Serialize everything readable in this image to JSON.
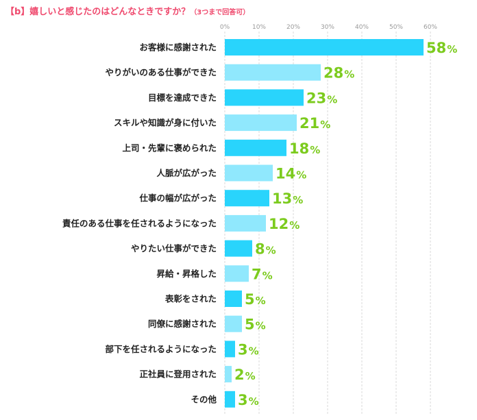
{
  "chart_data": {
    "type": "bar",
    "orientation": "horizontal",
    "title": "【b】嬉しいと感じたのはどんなときですか？",
    "subtitle": "（3つまで回答可）",
    "xlim": [
      0,
      60
    ],
    "ticks": [
      "0%",
      "10%",
      "20%",
      "30%",
      "40%",
      "50%",
      "60%"
    ],
    "tick_values": [
      0,
      10,
      20,
      30,
      40,
      50,
      60
    ],
    "grid": true,
    "value_suffix": "%",
    "categories": [
      "お客様に感謝された",
      "やりがいのある仕事ができた",
      "目標を達成できた",
      "スキルや知識が身に付いた",
      "上司・先輩に褒められた",
      "人脈が広がった",
      "仕事の幅が広がった",
      "責任のある仕事を任されるようになった",
      "やりたい仕事ができた",
      "昇給・昇格した",
      "表彰をされた",
      "同僚に感謝された",
      "部下を任されるようになった",
      "正社員に登用された",
      "その他"
    ],
    "values": [
      58,
      28,
      23,
      21,
      18,
      14,
      13,
      12,
      8,
      7,
      5,
      5,
      3,
      2,
      3
    ],
    "colors": {
      "bar_dark": "#29d4fc",
      "bar_light": "#90e8fd",
      "value_label": "#7ccb1e",
      "grid": "#d9d9d9",
      "title": "#ef4a6e"
    }
  }
}
